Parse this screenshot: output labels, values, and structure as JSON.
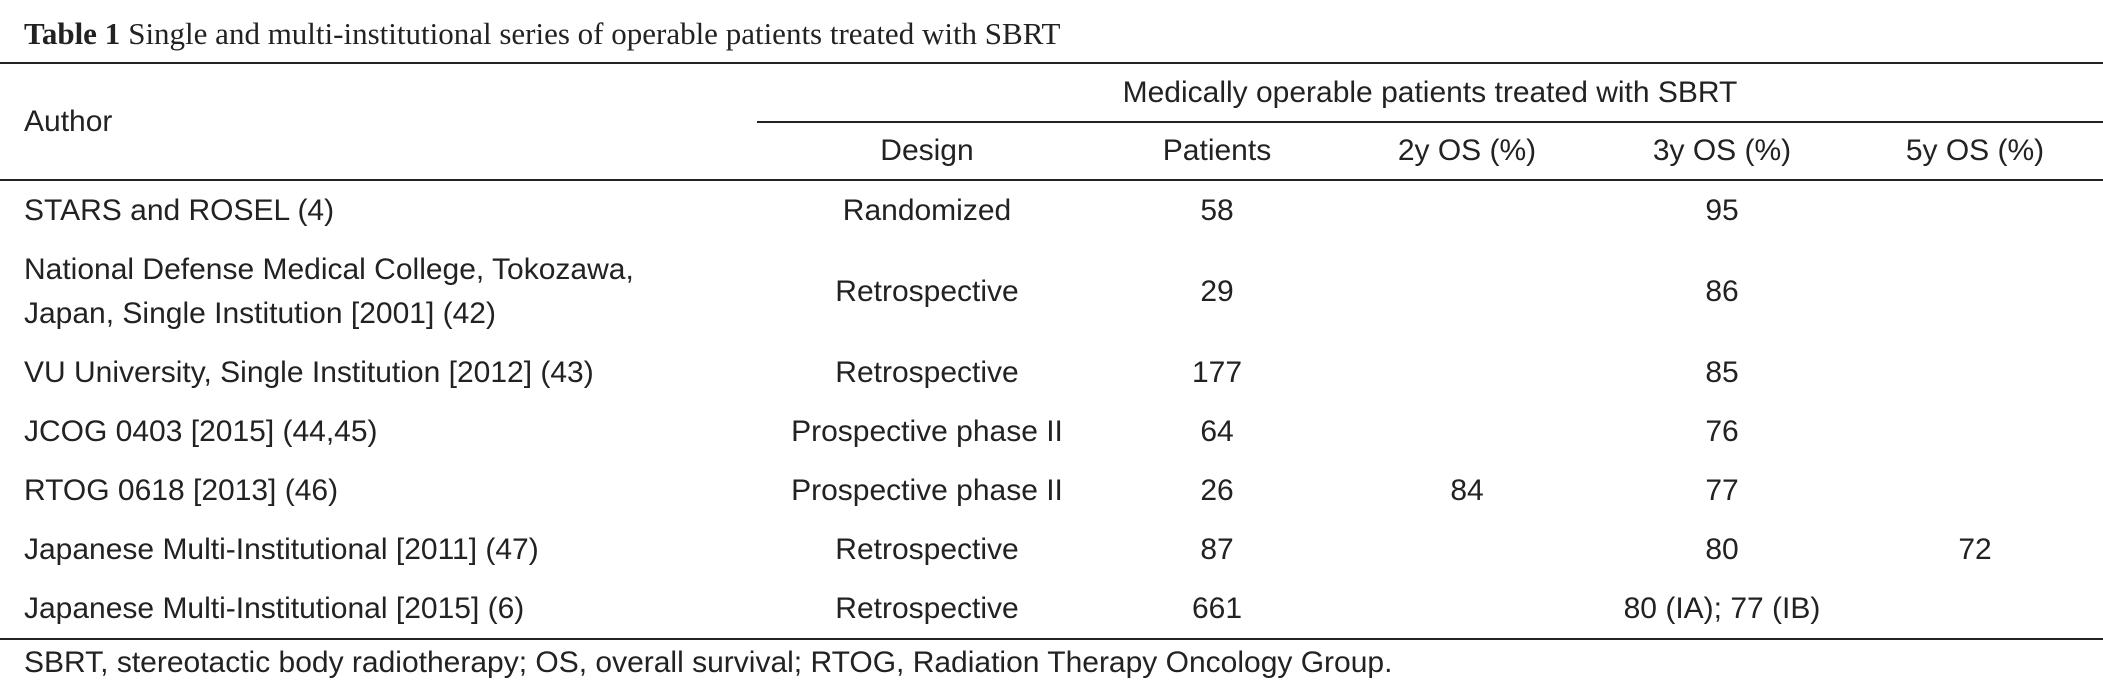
{
  "caption": {
    "label": "Table 1",
    "text": "Single and multi-institutional series of operable patients treated with SBRT"
  },
  "header": {
    "author": "Author",
    "group": "Medically operable patients treated with SBRT",
    "columns": [
      "Design",
      "Patients",
      "2y OS (%)",
      "3y OS (%)",
      "5y OS (%)"
    ]
  },
  "rows": [
    {
      "author": "STARS and ROSEL (4)",
      "design": "Randomized",
      "patients": "58",
      "os2": "",
      "os3": "95",
      "os5": ""
    },
    {
      "author_line1": "National Defense Medical College, Tokozawa,",
      "author_line2": "Japan, Single Institution [2001] (42)",
      "design": "Retrospective",
      "patients": "29",
      "os2": "",
      "os3": "86",
      "os5": ""
    },
    {
      "author": "VU University, Single Institution [2012] (43)",
      "design": "Retrospective",
      "patients": "177",
      "os2": "",
      "os3": "85",
      "os5": ""
    },
    {
      "author": "JCOG 0403 [2015] (44,45)",
      "design": "Prospective phase II",
      "patients": "64",
      "os2": "",
      "os3": "76",
      "os5": ""
    },
    {
      "author": "RTOG 0618 [2013] (46)",
      "design": "Prospective phase II",
      "patients": "26",
      "os2": "84",
      "os3": "77",
      "os5": ""
    },
    {
      "author": "Japanese Multi-Institutional [2011] (47)",
      "design": "Retrospective",
      "patients": "87",
      "os2": "",
      "os3": "80",
      "os5": "72"
    },
    {
      "author": "Japanese Multi-Institutional [2015] (6)",
      "design": "Retrospective",
      "patients": "661",
      "os2": "",
      "os3": "80 (IA); 77 (IB)",
      "os5": ""
    }
  ],
  "footnote": "SBRT, stereotactic body radiotherapy; OS, overall survival; RTOG, Radiation Therapy Oncology Group."
}
